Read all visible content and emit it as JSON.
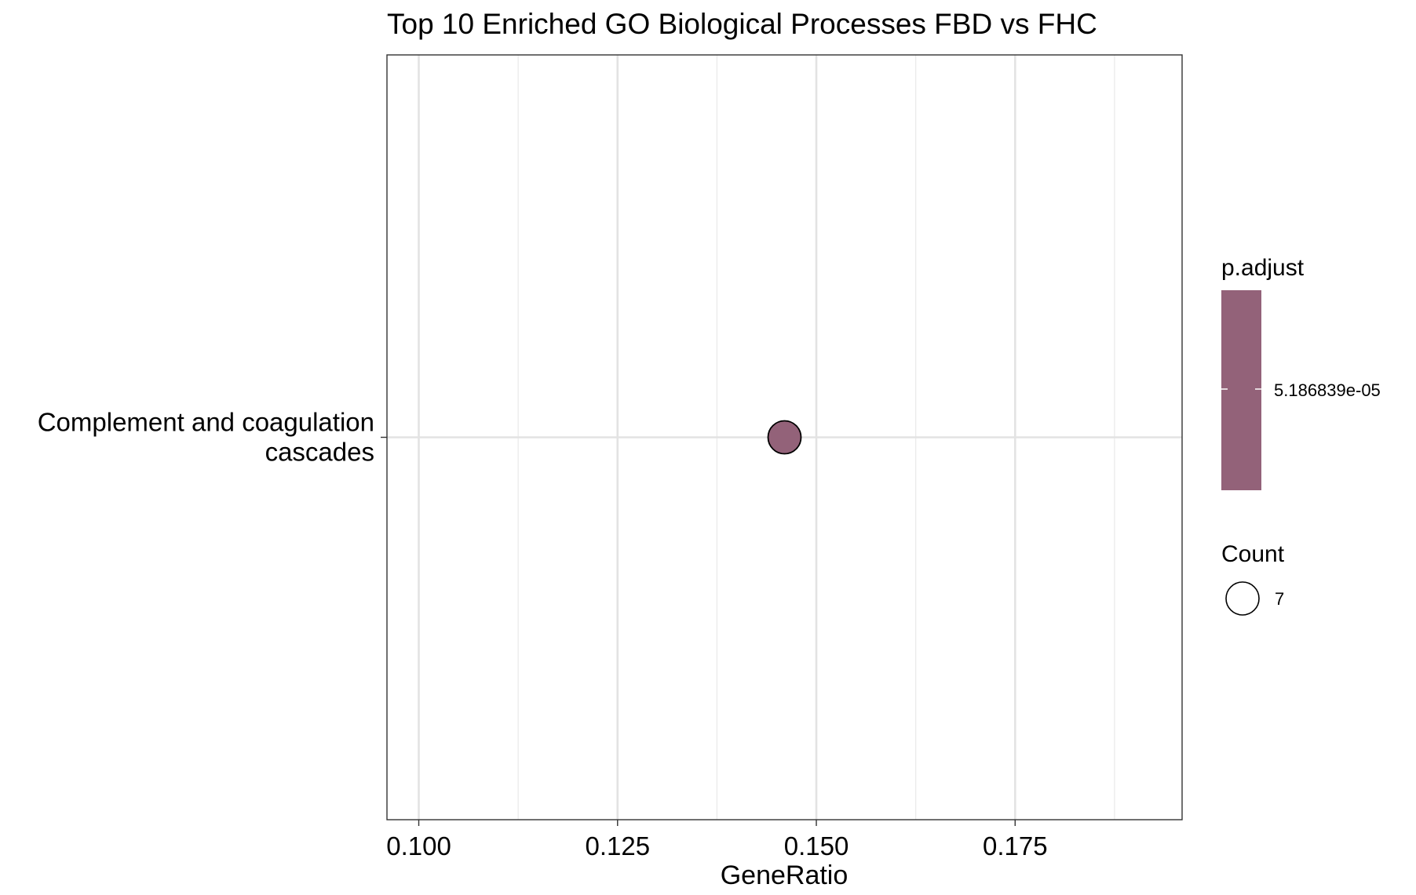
{
  "chart_data": {
    "type": "scatter",
    "title": "Top 10 Enriched GO Biological Processes FBD vs FHC",
    "xlabel": "GeneRatio",
    "ylabel": "",
    "xlim": [
      0.096,
      0.196
    ],
    "x_ticks": [
      "0.100",
      "0.125",
      "0.150",
      "0.175"
    ],
    "x_tick_values": [
      0.1,
      0.125,
      0.15,
      0.175
    ],
    "grid": true,
    "categories": [
      [
        "Complement and coagulation",
        "cascades"
      ]
    ],
    "points": [
      {
        "category": "Complement and coagulation cascades",
        "x": 0.146,
        "count": 7,
        "p_adjust": 5.186839e-05
      }
    ],
    "point_color": "#936279",
    "legend": {
      "placement": "right",
      "color": {
        "title": "p.adjust",
        "label": "5.186839e-05",
        "color": "#936279"
      },
      "size": {
        "title": "Count",
        "label": "7"
      }
    }
  }
}
